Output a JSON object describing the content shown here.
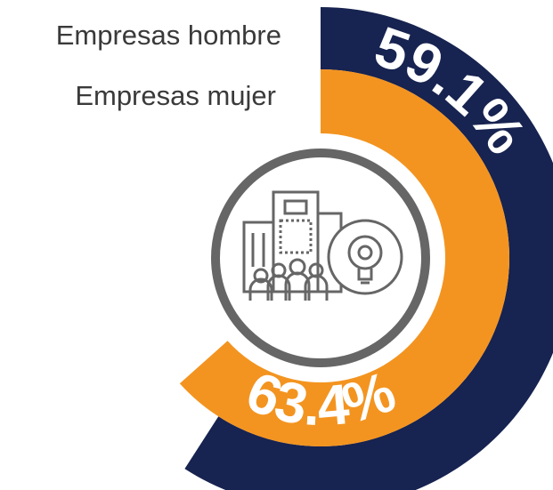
{
  "chart_data": {
    "type": "radial_bar",
    "ylim": [
      0,
      100
    ],
    "series": [
      {
        "name": "Empresas hombre",
        "color": "#172350",
        "values": [
          59.1
        ],
        "value_labels": [
          "59.1%"
        ]
      },
      {
        "name": "Empresas mujer",
        "color": "#f39420",
        "values": [
          63.4
        ],
        "value_labels": [
          "63.4%"
        ]
      }
    ]
  }
}
